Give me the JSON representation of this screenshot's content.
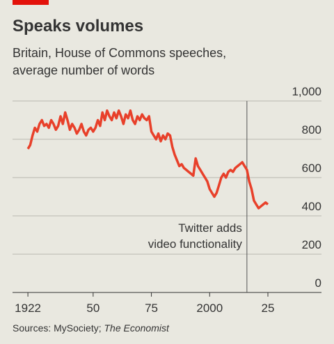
{
  "chart_data": {
    "type": "line",
    "title": "Speaks volumes",
    "subtitle": [
      "Britain, House of Commons speeches,",
      "average number of words"
    ],
    "source": [
      "Sources: MySociety; ",
      "The Economist"
    ],
    "annotation": {
      "text": [
        "Twitter adds",
        "video functionality"
      ],
      "x": 2016
    },
    "x": [
      1922,
      1923,
      1924,
      1925,
      1926,
      1927,
      1928,
      1929,
      1930,
      1931,
      1932,
      1933,
      1934,
      1935,
      1936,
      1937,
      1938,
      1939,
      1940,
      1941,
      1942,
      1943,
      1944,
      1945,
      1946,
      1947,
      1948,
      1949,
      1950,
      1951,
      1952,
      1953,
      1954,
      1955,
      1956,
      1957,
      1958,
      1959,
      1960,
      1961,
      1962,
      1963,
      1964,
      1965,
      1966,
      1967,
      1968,
      1969,
      1970,
      1971,
      1972,
      1973,
      1974,
      1975,
      1976,
      1977,
      1978,
      1979,
      1980,
      1981,
      1982,
      1983,
      1984,
      1985,
      1986,
      1987,
      1988,
      1989,
      1990,
      1991,
      1992,
      1993,
      1994,
      1995,
      1996,
      1997,
      1998,
      1999,
      2000,
      2001,
      2002,
      2003,
      2004,
      2005,
      2006,
      2007,
      2008,
      2009,
      2010,
      2011,
      2012,
      2013,
      2014,
      2015,
      2016,
      2017,
      2018,
      2019,
      2020,
      2021,
      2022,
      2023,
      2024,
      2025
    ],
    "series": [
      {
        "name": "Average number of words",
        "color": "#e8402a",
        "values": [
          750,
          770,
          820,
          860,
          840,
          880,
          900,
          870,
          880,
          860,
          900,
          880,
          850,
          870,
          920,
          880,
          940,
          900,
          850,
          880,
          860,
          830,
          850,
          880,
          840,
          820,
          850,
          860,
          840,
          860,
          900,
          870,
          940,
          900,
          950,
          920,
          900,
          940,
          910,
          950,
          920,
          880,
          930,
          910,
          950,
          900,
          880,
          920,
          900,
          930,
          910,
          900,
          920,
          840,
          820,
          800,
          830,
          790,
          820,
          800,
          830,
          820,
          760,
          720,
          690,
          660,
          670,
          650,
          640,
          630,
          620,
          610,
          700,
          660,
          640,
          620,
          600,
          580,
          540,
          520,
          500,
          520,
          560,
          600,
          620,
          600,
          630,
          640,
          630,
          650,
          660,
          670,
          680,
          660,
          640,
          580,
          540,
          480,
          460,
          440,
          450,
          460,
          470,
          460
        ]
      }
    ],
    "xlim": [
      1915.4,
      2048
    ],
    "xticks": [
      1922,
      {
        "value": 1950,
        "label": "50"
      },
      {
        "value": 1975,
        "label": "75"
      },
      2000,
      {
        "value": 2025,
        "label": "25"
      }
    ],
    "ylim": [
      0,
      1000
    ],
    "yticks": [
      0,
      200,
      400,
      600,
      800,
      {
        "value": 1000,
        "label": "1,000"
      }
    ],
    "grid": true
  }
}
